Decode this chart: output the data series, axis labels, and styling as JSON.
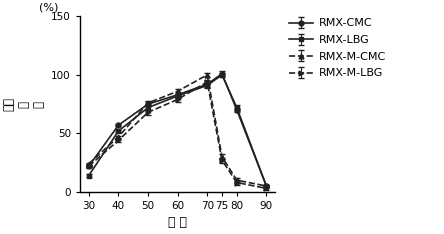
{
  "x": [
    30,
    40,
    50,
    60,
    70,
    75,
    80,
    90
  ],
  "rmx_cmc": [
    22,
    57,
    75,
    83,
    92,
    101,
    70,
    5
  ],
  "rmx_lbg": [
    14,
    52,
    72,
    82,
    91,
    100,
    72,
    5
  ],
  "rmx_m_cmc": [
    24,
    47,
    76,
    86,
    100,
    30,
    10,
    5
  ],
  "rmx_m_lbg": [
    22,
    44,
    68,
    79,
    94,
    27,
    8,
    3
  ],
  "rmx_cmc_err": [
    1,
    1,
    2,
    2,
    2,
    2,
    2,
    1
  ],
  "rmx_lbg_err": [
    1,
    1,
    2,
    2,
    2,
    2,
    2,
    1
  ],
  "rmx_m_cmc_err": [
    1,
    1,
    2,
    2,
    2,
    2,
    2,
    1
  ],
  "rmx_m_lbg_err": [
    1,
    1,
    2,
    2,
    2,
    2,
    2,
    1
  ],
  "ylabel_top": "(%)",
  "ylabel_side": "相对\n酶\n活",
  "xlabel": "温 度",
  "ylim": [
    0,
    150
  ],
  "yticks": [
    0,
    50,
    100,
    150
  ],
  "xticks": [
    30,
    40,
    50,
    60,
    70,
    75,
    80,
    90
  ],
  "legend_labels": [
    "RMX-CMC",
    "RMX-LBG",
    "RMX-M-CMC",
    "RMX-M-LBG"
  ],
  "line_color": "#222222",
  "background_color": "#ffffff"
}
